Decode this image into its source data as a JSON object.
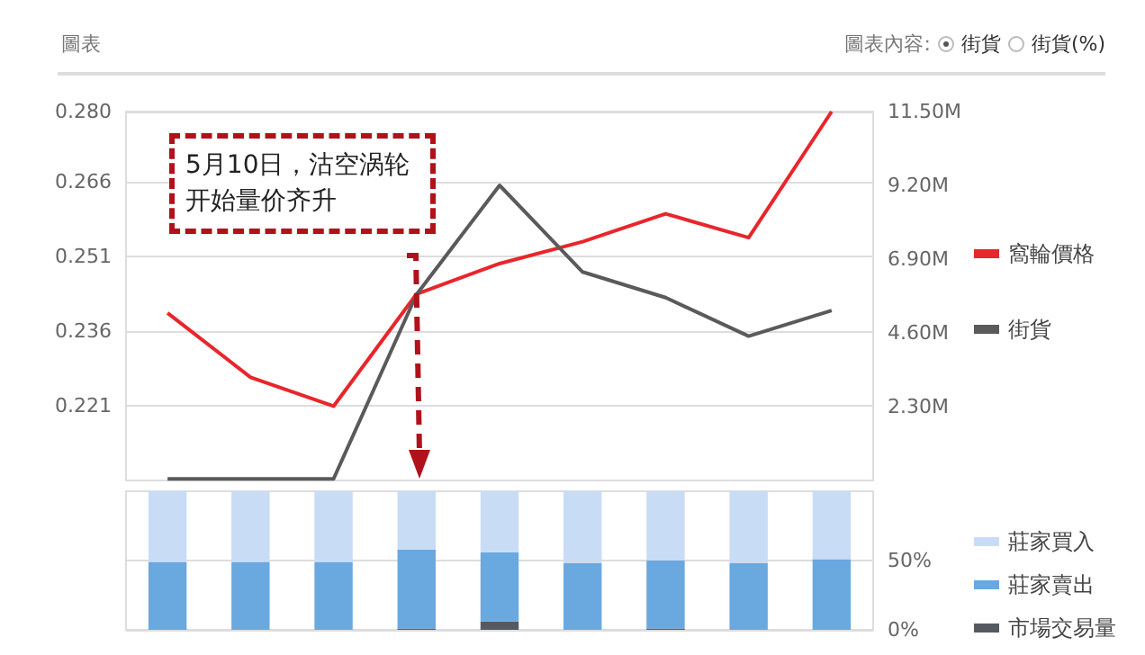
{
  "chart_data": [
    {
      "type": "line",
      "title": "圖表",
      "annotations": [
        "圖表內容:",
        "街貨",
        "街貨(%)",
        "5月10日，沽空涡轮开始量价齐升"
      ],
      "categories": [
        null,
        null,
        null,
        null,
        null,
        null,
        null,
        null,
        null
      ],
      "series": [
        {
          "name": "窩輪價格",
          "color": "#e8262b",
          "values": [
            0.2396,
            0.2267,
            0.2209,
            0.2434,
            0.2495,
            0.2539,
            0.2595,
            0.2547,
            0.28
          ]
        },
        {
          "name": "街貨",
          "color": "#5a5a5a",
          "axis": "y2",
          "values": [
            0.05,
            0.05,
            0.05,
            5.8,
            9.2,
            6.5,
            5.7,
            4.5,
            5.3
          ]
        }
      ],
      "ylim": [
        0.206,
        0.28
      ],
      "yticks": [
        {
          "value": 0.221,
          "label": "0.221"
        },
        {
          "value": 0.236,
          "label": "0.236"
        },
        {
          "value": 0.251,
          "label": "0.251"
        },
        {
          "value": 0.266,
          "label": "0.266"
        },
        {
          "value": 0.28,
          "label": "0.280"
        }
      ],
      "y2lim": [
        0,
        11.5
      ],
      "y2ticks": [
        {
          "value": 2.3,
          "label": "2.30M"
        },
        {
          "value": 4.6,
          "label": "4.60M"
        },
        {
          "value": 6.9,
          "label": "6.90M"
        },
        {
          "value": 9.2,
          "label": "9.20M"
        },
        {
          "value": 11.5,
          "label": "11.50M"
        }
      ],
      "grid": "y",
      "legend": "right",
      "marker": "none",
      "line_style": "solid"
    },
    {
      "type": "bar",
      "stacked": true,
      "categories": [
        null,
        null,
        null,
        null,
        null,
        null,
        null,
        null,
        null
      ],
      "series": [
        {
          "name": "市場交易量",
          "color": "#555a60",
          "values": [
            0,
            0,
            0,
            1,
            6,
            0,
            1,
            0,
            0
          ]
        },
        {
          "name": "莊家賣出",
          "color": "#6aa8e0",
          "values": [
            49,
            49,
            49,
            57,
            50,
            48,
            49,
            48,
            51
          ]
        },
        {
          "name": "莊家買入",
          "color": "#c9dcf5",
          "values": [
            51,
            51,
            51,
            42,
            44,
            52,
            50,
            52,
            49
          ]
        }
      ],
      "ylim": [
        0,
        100
      ],
      "yticks": [
        {
          "value": 0,
          "label": "0%"
        },
        {
          "value": 50,
          "label": "50%"
        }
      ],
      "grid": "y",
      "legend": "right"
    }
  ]
}
